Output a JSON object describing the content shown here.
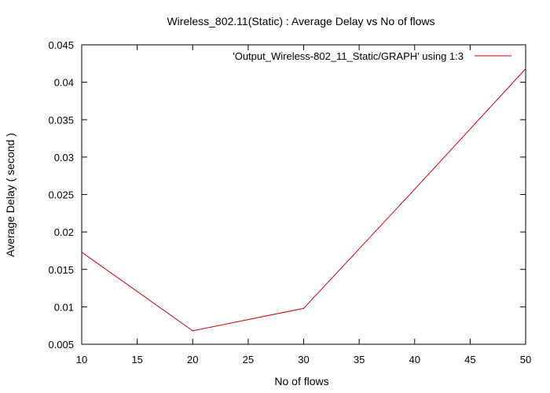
{
  "chart_data": {
    "type": "line",
    "title": "Wireless_802.11(Static) : Average Delay vs No of flows",
    "xlabel": "No of flows",
    "ylabel": "Average Delay ( second )",
    "xlim": [
      10,
      50
    ],
    "ylim": [
      0.005,
      0.045
    ],
    "xticks": [
      "10",
      "15",
      "20",
      "25",
      "30",
      "35",
      "40",
      "45",
      "50"
    ],
    "yticks": [
      "0.005",
      "0.01",
      "0.015",
      "0.02",
      "0.025",
      "0.03",
      "0.035",
      "0.04",
      "0.045"
    ],
    "grid": false,
    "legend_position": "top-right",
    "series": [
      {
        "name": "'Output_Wireless-802_11_Static/GRAPH' using 1:3",
        "color": "#cc0000",
        "x": [
          10,
          20,
          30,
          40,
          50
        ],
        "y": [
          0.0173,
          0.0068,
          0.0098,
          0.0257,
          0.0418
        ]
      }
    ]
  }
}
